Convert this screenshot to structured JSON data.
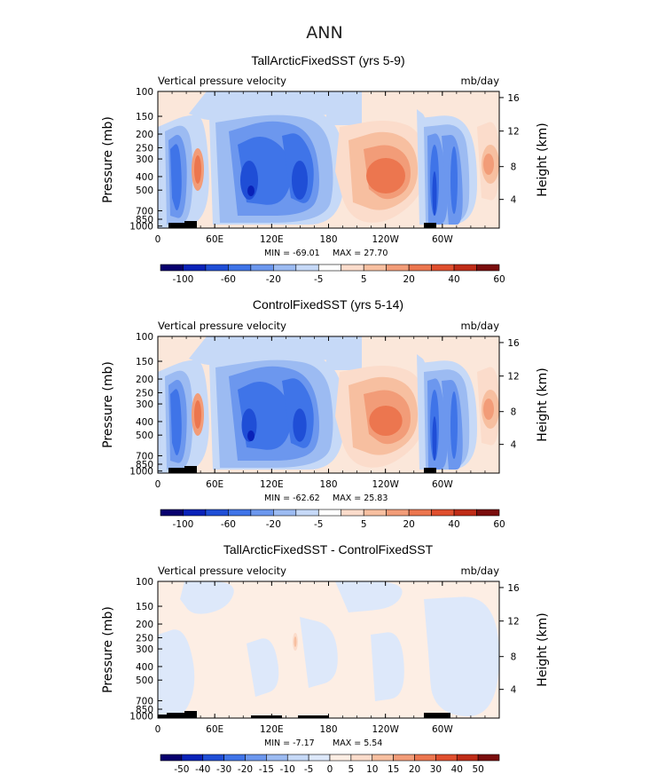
{
  "figure_title": "ANN",
  "chart_data": [
    {
      "type": "heatmap",
      "title": "TallArcticFixedSST (yrs 5-9)",
      "left_label": "Vertical pressure velocity",
      "right_label": "mb/day",
      "ylabel": "Pressure (mb)",
      "y2label": "Height (km)",
      "x_ticks": [
        "0",
        "60E",
        "120E",
        "180",
        "120W",
        "60W"
      ],
      "y_ticks": [
        "100",
        "150",
        "200",
        "250",
        "300",
        "400",
        "500",
        "700",
        "850",
        "1000"
      ],
      "y2_ticks": [
        "16",
        "12",
        "8",
        "4"
      ],
      "min_text": "MIN = -69.01",
      "max_text": "MAX = 27.70",
      "min": -69.01,
      "max": 27.7,
      "colorbar_labels": [
        "-100",
        "-60",
        "-20",
        "-5",
        "5",
        "20",
        "40",
        "60"
      ]
    },
    {
      "type": "heatmap",
      "title": "ControlFixedSST (yrs 5-14)",
      "left_label": "Vertical pressure velocity",
      "right_label": "mb/day",
      "ylabel": "Pressure (mb)",
      "y2label": "Height (km)",
      "x_ticks": [
        "0",
        "60E",
        "120E",
        "180",
        "120W",
        "60W"
      ],
      "y_ticks": [
        "100",
        "150",
        "200",
        "250",
        "300",
        "400",
        "500",
        "700",
        "850",
        "1000"
      ],
      "y2_ticks": [
        "16",
        "12",
        "8",
        "4"
      ],
      "min_text": "MIN = -62.62",
      "max_text": "MAX = 25.83",
      "min": -62.62,
      "max": 25.83,
      "colorbar_labels": [
        "-100",
        "-60",
        "-20",
        "-5",
        "5",
        "20",
        "40",
        "60"
      ]
    },
    {
      "type": "heatmap",
      "title": "TallArcticFixedSST - ControlFixedSST",
      "left_label": "Vertical pressure velocity",
      "right_label": "mb/day",
      "ylabel": "Pressure (mb)",
      "y2label": "Height (km)",
      "x_ticks": [
        "0",
        "60E",
        "120E",
        "180",
        "120W",
        "60W"
      ],
      "y_ticks": [
        "100",
        "150",
        "200",
        "250",
        "300",
        "400",
        "500",
        "700",
        "850",
        "1000"
      ],
      "y2_ticks": [
        "16",
        "12",
        "8",
        "4"
      ],
      "min_text": "MIN = -7.17",
      "max_text": "MAX = 5.54",
      "min": -7.17,
      "max": 5.54,
      "colorbar_labels": [
        "-50",
        "-40",
        "-30",
        "-20",
        "-15",
        "-10",
        "-5",
        "0",
        "5",
        "10",
        "15",
        "20",
        "30",
        "40",
        "50"
      ]
    }
  ],
  "colors": {
    "panel_scale": [
      "#08006e",
      "#0a22b8",
      "#1f4ed6",
      "#3f74e8",
      "#6c97ee",
      "#9cbbf2",
      "#c6d9f7",
      "#ffffff",
      "#fbdccb",
      "#f7bfa0",
      "#f29c78",
      "#ec764f",
      "#e04f2e",
      "#bf2c17",
      "#7a0d0d"
    ],
    "diff_scale": [
      "#08006e",
      "#0a22b8",
      "#1f4ed6",
      "#3f74e8",
      "#6c97ee",
      "#9cbbf2",
      "#c6d9f7",
      "#dde8fa",
      "#fdeee4",
      "#fbdccb",
      "#f7bfa0",
      "#f29c78",
      "#ec764f",
      "#e04f2e",
      "#bf2c17",
      "#7a0d0d"
    ]
  }
}
